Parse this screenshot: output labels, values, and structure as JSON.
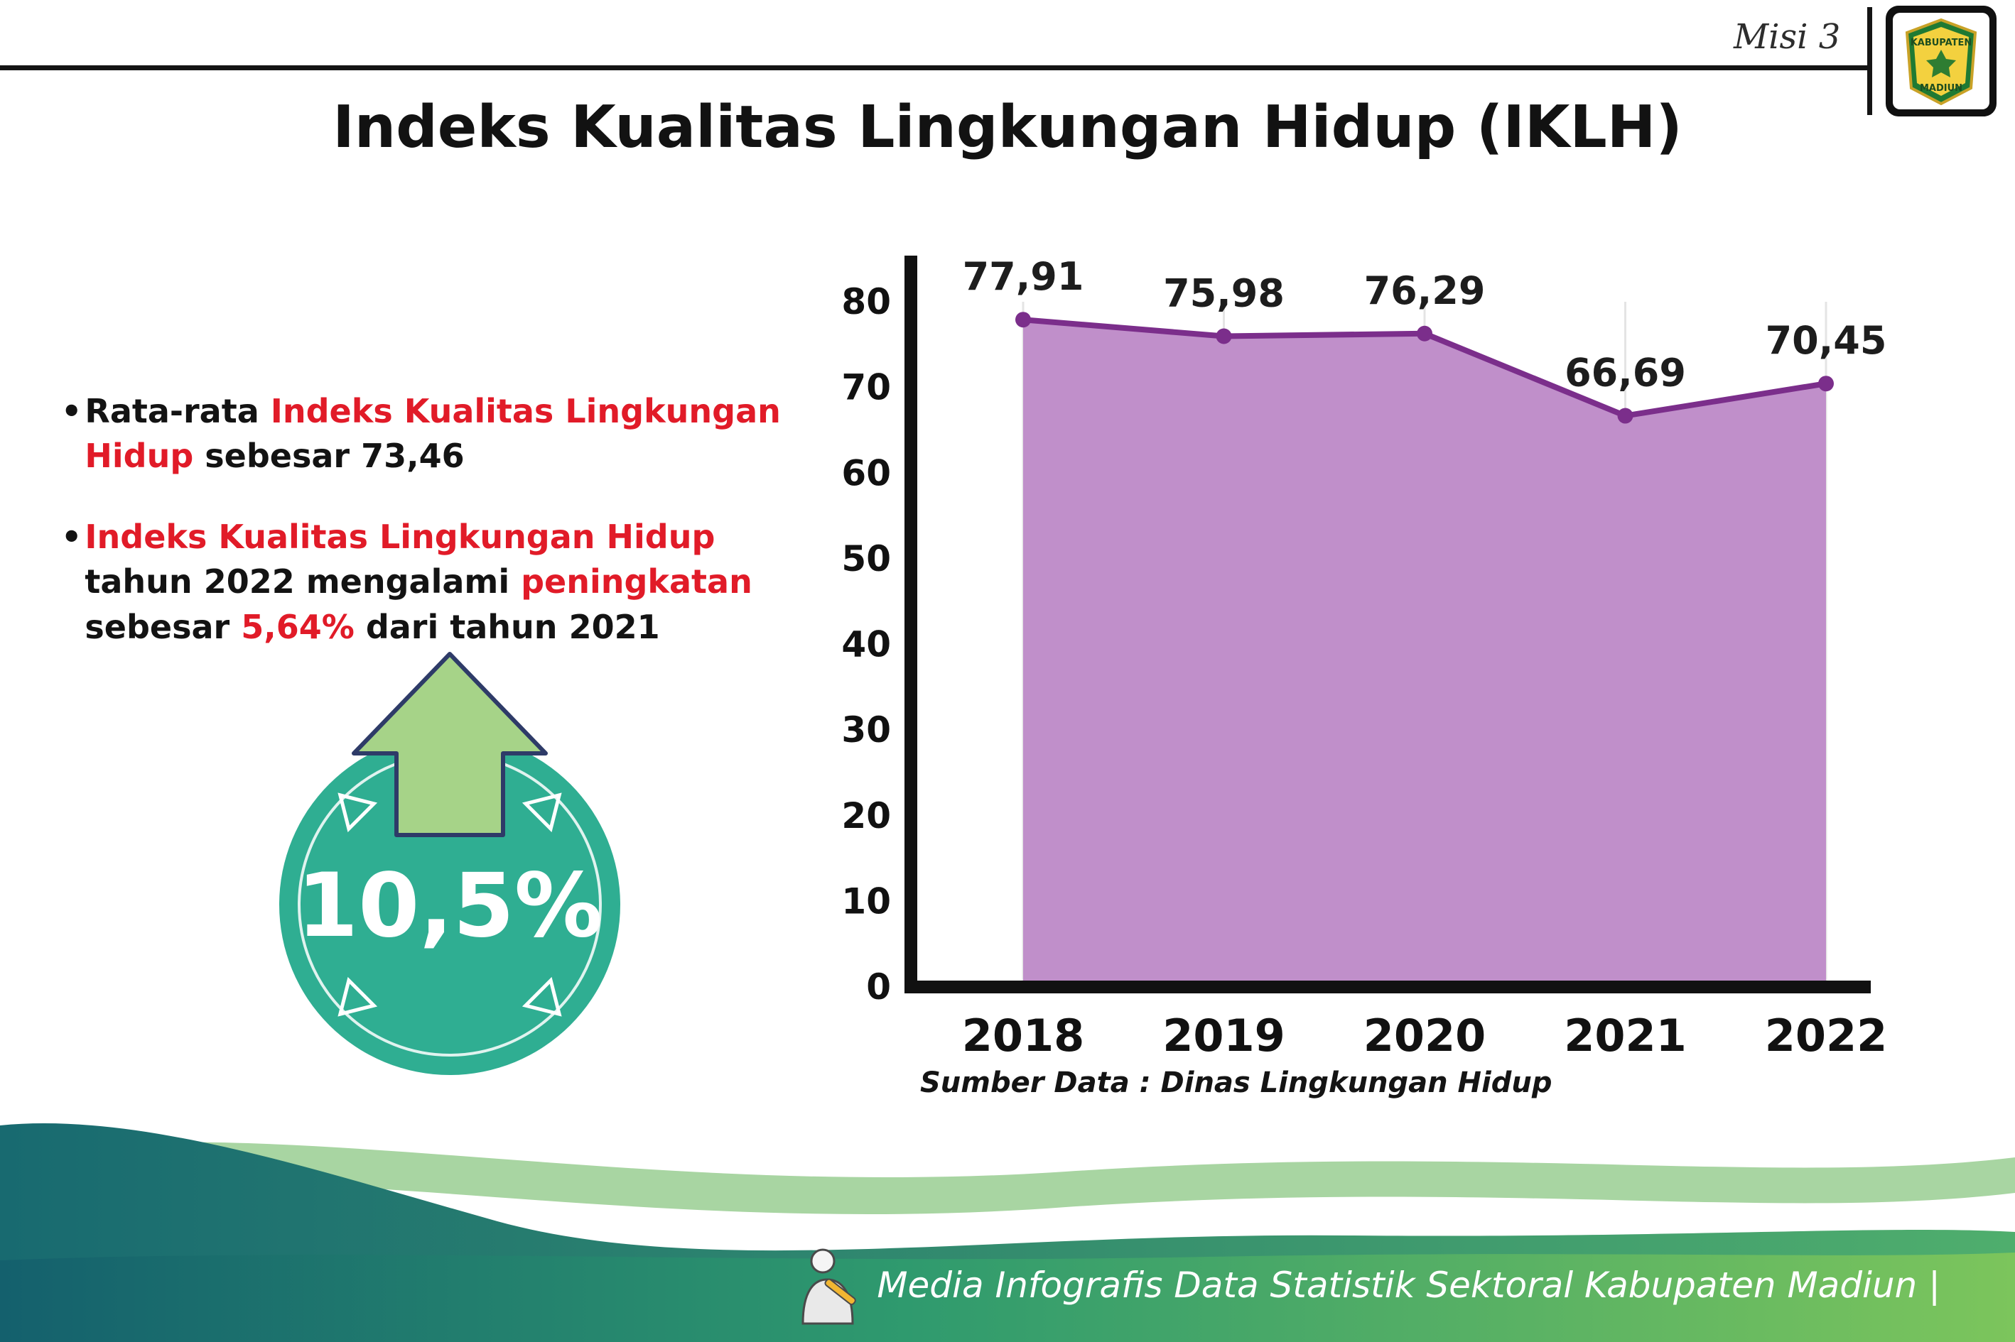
{
  "colors": {
    "red": "#e11b28",
    "teal": "#2fae92",
    "arrow_green": "#a6d388",
    "arrow_outline": "#2e3b68",
    "purple_fill": "#c08fca",
    "purple_line": "#7b2e8b",
    "ink": "#141414",
    "footer_teal": "#186a70",
    "footer_green": "#7cc55c"
  },
  "header": {
    "misi": "Misi 3",
    "title": "Indeks Kualitas Lingkungan Hidup (IKLH)",
    "logo_top": "KABUPATEN",
    "logo_bottom": "MADIUN"
  },
  "bullets": {
    "marker": "•",
    "b1": {
      "s1": "Rata-rata ",
      "s2": "Indeks Kualitas Lingkungan Hidup",
      "s3": " sebesar 73,46"
    },
    "b2": {
      "s1": "Indeks Kualitas Lingkungan Hidup",
      "s2": " tahun 2022 mengalami ",
      "s3": "peningkatan",
      "s4": " sebesar ",
      "s5": "5,64%",
      "s6": " dari tahun 2021"
    }
  },
  "badge": {
    "value": "10,5%"
  },
  "chart_data": {
    "type": "area",
    "title": "Indeks Kualitas Lingkungan Hidup (IKLH)",
    "categories": [
      "2018",
      "2019",
      "2020",
      "2021",
      "2022"
    ],
    "values": [
      77.91,
      75.98,
      76.29,
      66.69,
      70.45
    ],
    "value_labels": [
      "77,91",
      "75,98",
      "76,29",
      "66,69",
      "70,45"
    ],
    "ylim": [
      0,
      80
    ],
    "yticks": [
      0,
      10,
      20,
      30,
      40,
      50,
      60,
      70,
      80
    ],
    "xlabel": "",
    "ylabel": "",
    "grid": "faint-vertical",
    "legend": "none",
    "source": "Sumber Data : Dinas Lingkungan Hidup"
  },
  "footer": {
    "credit": "Media Infografis Data Statistik Sektoral Kabupaten Madiun |"
  }
}
